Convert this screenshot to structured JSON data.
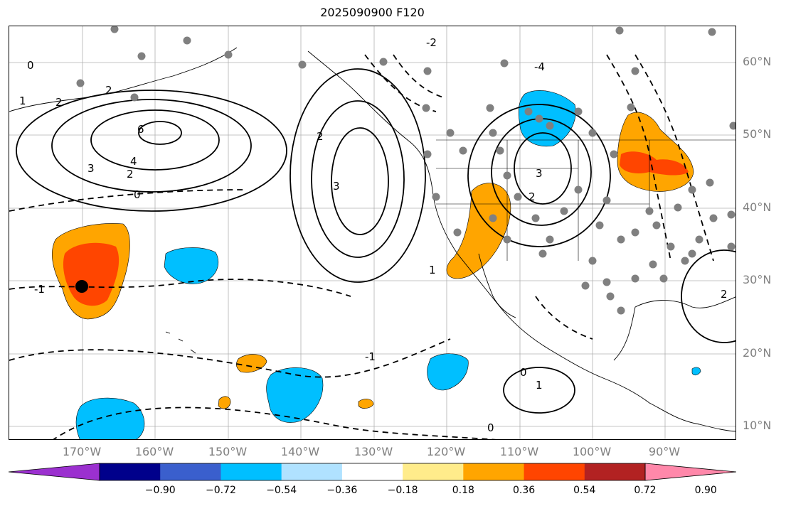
{
  "title": "2025090900 F120",
  "map": {
    "lat_labels": [
      "60°N",
      "50°N",
      "40°N",
      "30°N",
      "20°N",
      "10°N"
    ],
    "lon_labels": [
      "170°W",
      "160°W",
      "150°W",
      "140°W",
      "130°W",
      "120°W",
      "110°W",
      "100°W",
      "90°W"
    ],
    "contour_labels": [
      "0",
      "1",
      "2",
      "3",
      "4",
      "6",
      "-1",
      "-2",
      "-4"
    ],
    "station_marker": "black-dot",
    "colors": {
      "land_outline": "#000000",
      "gridline": "#b0b0b0",
      "station_dot": "#808080",
      "contour": "#000000"
    }
  },
  "colorbar": {
    "ticks": [
      "−0.90",
      "−0.72",
      "−0.54",
      "−0.36",
      "−0.18",
      "0.18",
      "0.36",
      "0.54",
      "0.72",
      "0.90"
    ],
    "colors": [
      "#9b30cf",
      "#00008b",
      "#3a5fcd",
      "#00bfff",
      "#b0e2ff",
      "#ffffff",
      "#ffec8b",
      "#ffa500",
      "#ff4500",
      "#b22222",
      "#ff88aa"
    ]
  }
}
